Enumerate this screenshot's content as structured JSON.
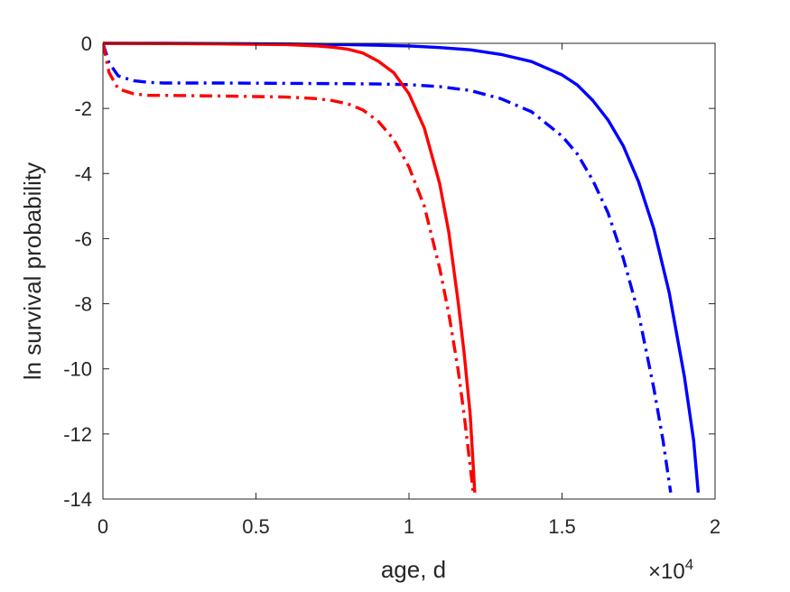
{
  "chart_data": {
    "type": "line",
    "title": "",
    "xlabel": "age, d",
    "ylabel": "ln survival probability",
    "x_exponent_label": {
      "base": "×10",
      "power": "4"
    },
    "xlim": [
      0,
      20000
    ],
    "ylim": [
      -14,
      0
    ],
    "xticks": [
      0,
      5000,
      10000,
      15000,
      20000
    ],
    "xtick_labels": [
      "0",
      "0.5",
      "1",
      "1.5",
      "2"
    ],
    "yticks": [
      0,
      -2,
      -4,
      -6,
      -8,
      -10,
      -12,
      -14
    ],
    "ytick_labels": [
      "0",
      "-2",
      "-4",
      "-6",
      "-8",
      "-10",
      "-12",
      "-14"
    ],
    "grid": false,
    "series": [
      {
        "color": "#0000ff",
        "style": "solid",
        "x": [
          0,
          2000,
          4000,
          6000,
          8000,
          10000,
          11000,
          12000,
          13000,
          14000,
          15000,
          15500,
          16000,
          16500,
          17000,
          17500,
          18000,
          18500,
          19000,
          19300,
          19450
        ],
        "y": [
          0,
          0,
          -0.01,
          -0.02,
          -0.04,
          -0.08,
          -0.13,
          -0.2,
          -0.34,
          -0.56,
          -0.97,
          -1.28,
          -1.75,
          -2.35,
          -3.15,
          -4.25,
          -5.7,
          -7.65,
          -10.25,
          -12.2,
          -13.8
        ]
      },
      {
        "color": "#0000ff",
        "style": "dashdot",
        "x": [
          0,
          200,
          500,
          1000,
          1500,
          2000,
          4000,
          6000,
          8000,
          9000,
          10000,
          11000,
          12000,
          13000,
          14000,
          15000,
          15500,
          16000,
          16500,
          17000,
          17500,
          18000,
          18300,
          18550
        ],
        "y": [
          0,
          -0.6,
          -1.0,
          -1.15,
          -1.2,
          -1.22,
          -1.22,
          -1.23,
          -1.24,
          -1.25,
          -1.27,
          -1.33,
          -1.45,
          -1.7,
          -2.1,
          -2.85,
          -3.4,
          -4.2,
          -5.2,
          -6.6,
          -8.3,
          -10.6,
          -12.2,
          -13.8
        ]
      },
      {
        "color": "#ff0000",
        "style": "solid",
        "x": [
          0,
          2000,
          4000,
          6000,
          7000,
          7500,
          8000,
          8500,
          9000,
          9500,
          10000,
          10500,
          11000,
          11300,
          11600,
          11800,
          12000,
          12150
        ],
        "y": [
          0,
          -0.01,
          -0.02,
          -0.04,
          -0.08,
          -0.12,
          -0.18,
          -0.3,
          -0.55,
          -0.9,
          -1.55,
          -2.6,
          -4.3,
          -5.8,
          -7.9,
          -9.5,
          -11.4,
          -13.8
        ]
      },
      {
        "color": "#ff0000",
        "style": "dashdot",
        "x": [
          0,
          200,
          500,
          1000,
          1500,
          2000,
          4000,
          6000,
          7000,
          7500,
          8000,
          8500,
          9000,
          9500,
          10000,
          10500,
          11000,
          11300,
          11600,
          11800,
          12000,
          12100
        ],
        "y": [
          0,
          -0.9,
          -1.4,
          -1.55,
          -1.6,
          -1.6,
          -1.62,
          -1.65,
          -1.7,
          -1.76,
          -1.86,
          -2.05,
          -2.4,
          -2.95,
          -3.8,
          -5.0,
          -6.9,
          -8.3,
          -10.0,
          -11.4,
          -13.0,
          -13.8
        ]
      }
    ]
  }
}
